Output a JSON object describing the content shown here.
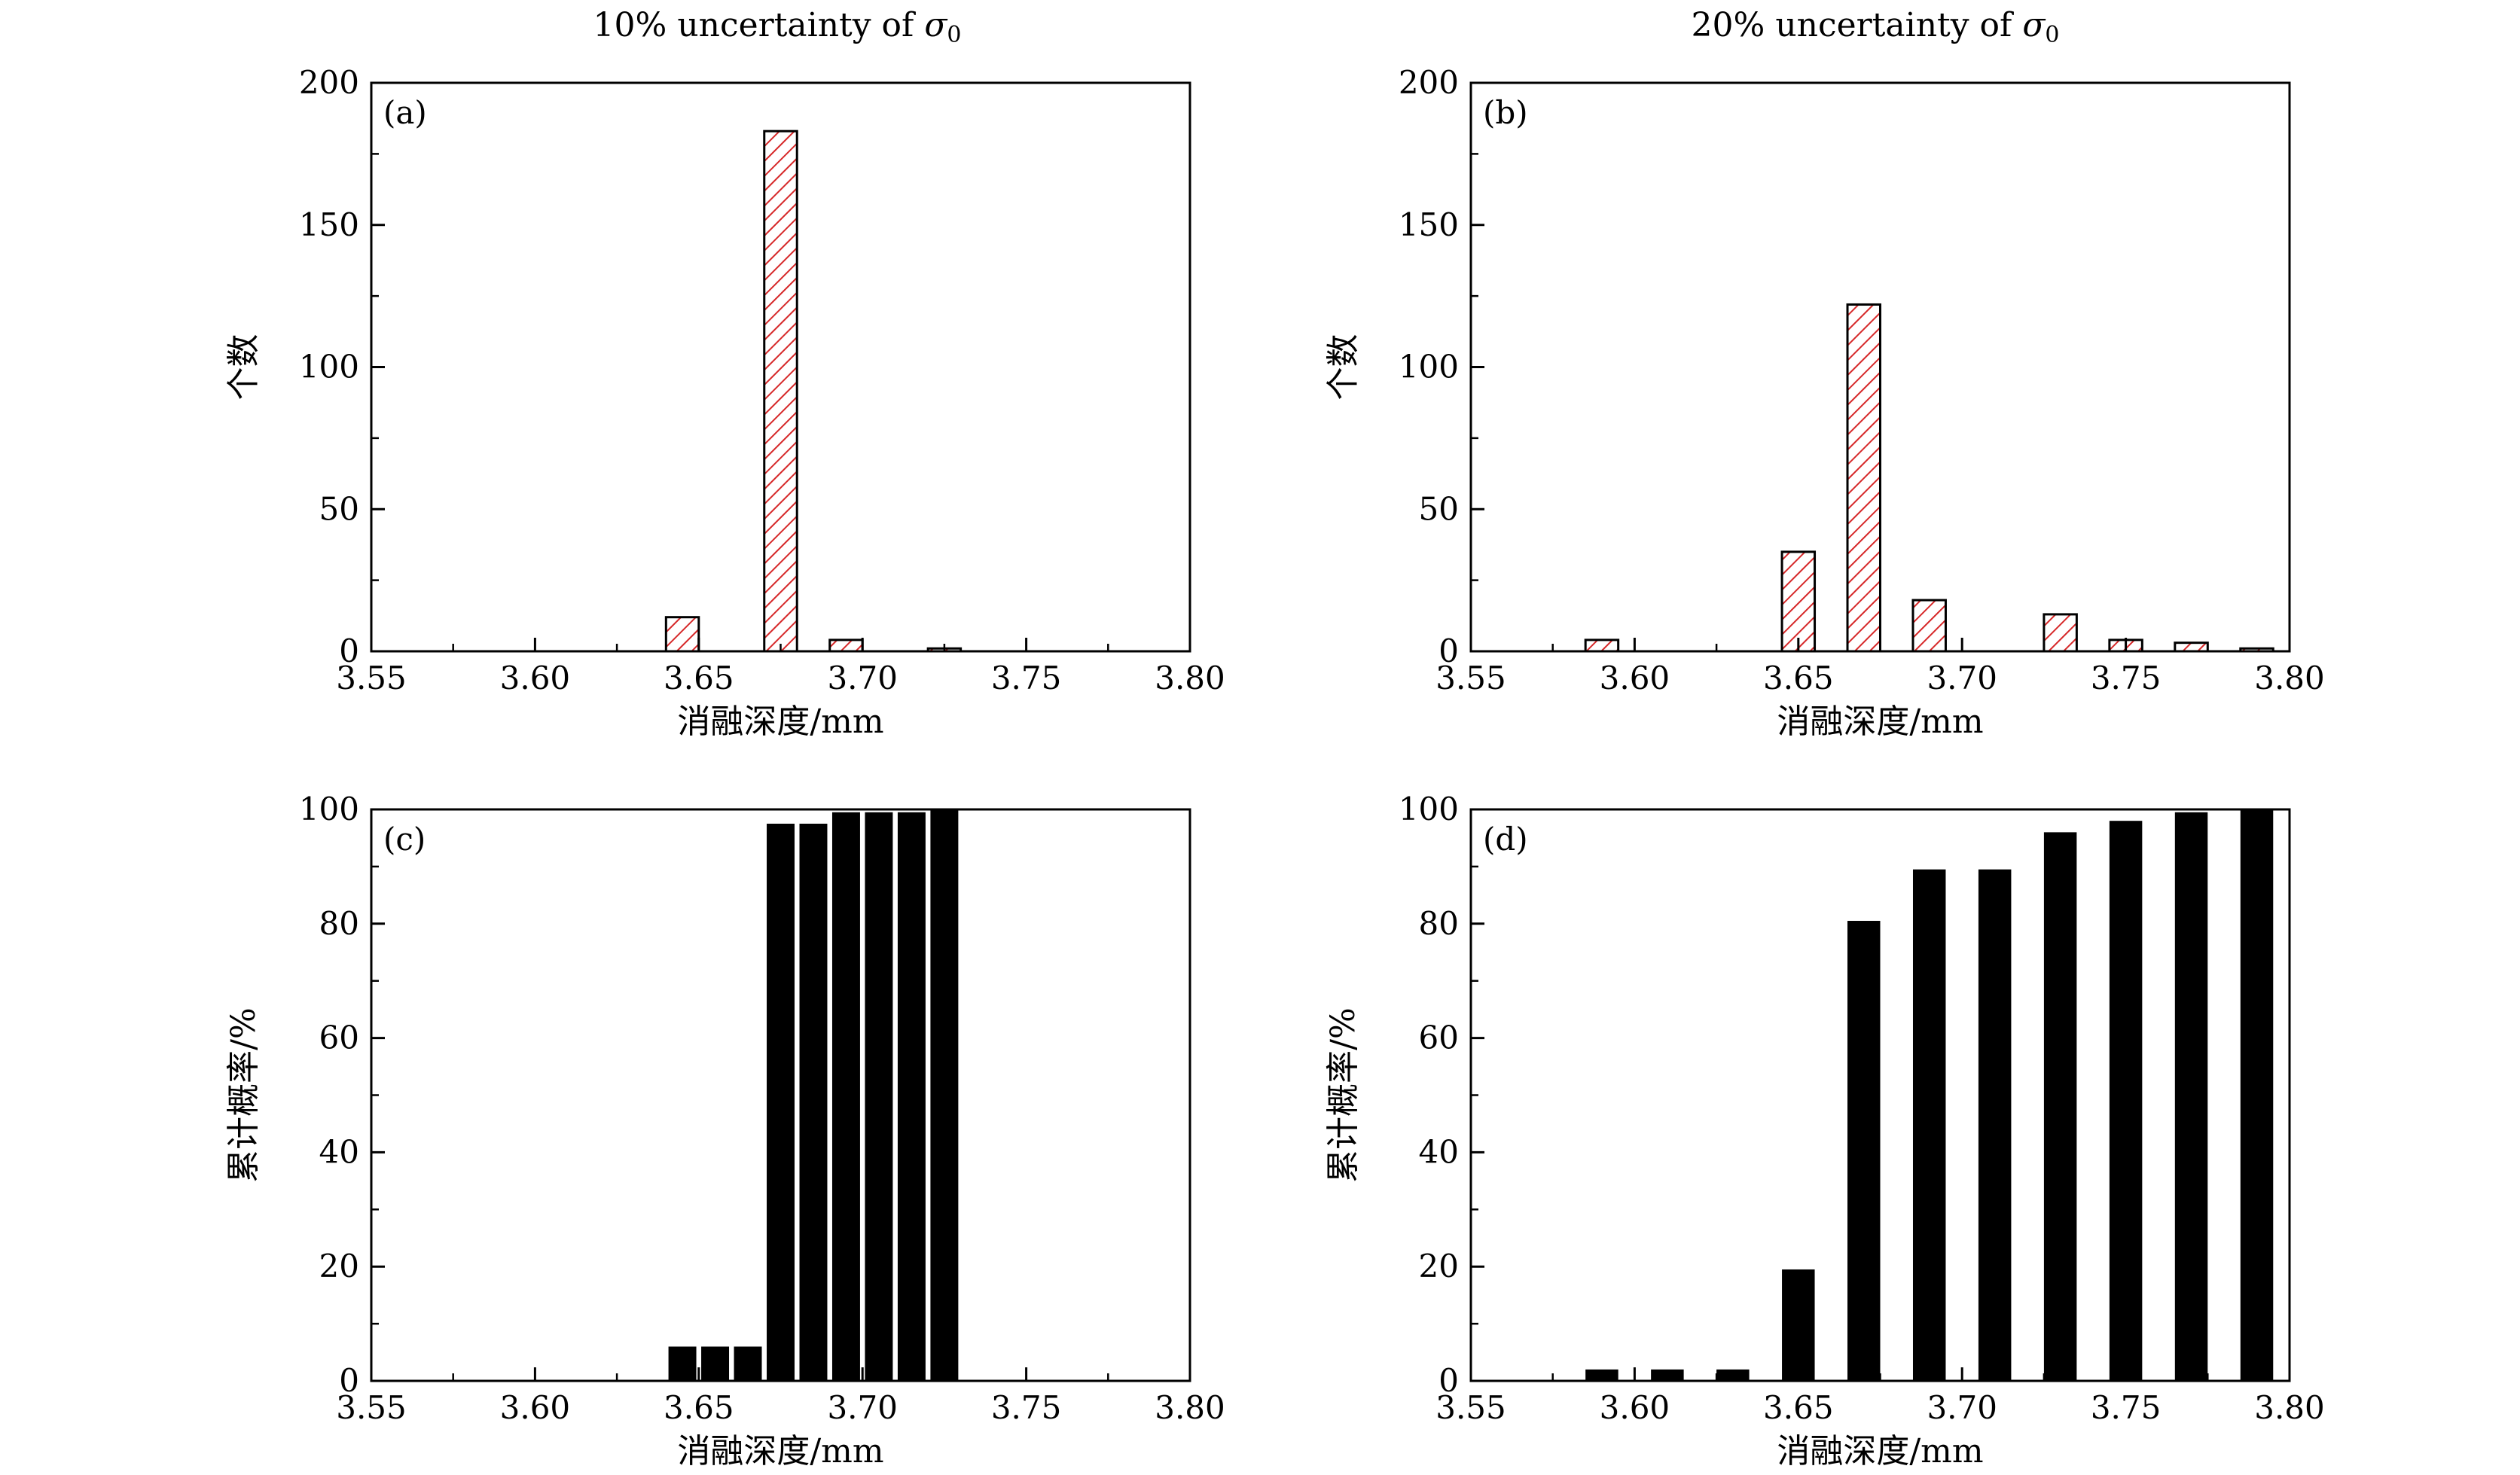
{
  "figure": {
    "column_titles": [
      {
        "prefix": "10% uncertainty of ",
        "symbol": "σ",
        "subscript": "0"
      },
      {
        "prefix": "20% uncertainty of ",
        "symbol": "σ",
        "subscript": "0"
      }
    ]
  },
  "colors": {
    "hatch_stroke": "#d62728",
    "bar_fill_solid": "#000000",
    "axis": "#000000"
  },
  "chart_data": [
    {
      "panel": "(a)",
      "type": "bar",
      "style": "hatched",
      "title": "10% uncertainty of σ0",
      "xlabel": "消融深度/mm",
      "ylabel": "个数",
      "xlim": [
        3.55,
        3.8
      ],
      "ylim": [
        0,
        200
      ],
      "xticks": [
        "3.55",
        "3.60",
        "3.65",
        "3.70",
        "3.75",
        "3.80"
      ],
      "yticks": [
        "0",
        "50",
        "100",
        "150",
        "200"
      ],
      "bar_width": 0.01,
      "x": [
        3.645,
        3.675,
        3.695,
        3.725
      ],
      "values": [
        12,
        183,
        4,
        1
      ]
    },
    {
      "panel": "(b)",
      "type": "bar",
      "style": "hatched",
      "title": "20% uncertainty of σ0",
      "xlabel": "消融深度/mm",
      "ylabel": "个数",
      "xlim": [
        3.55,
        3.8
      ],
      "ylim": [
        0,
        200
      ],
      "xticks": [
        "3.55",
        "3.60",
        "3.65",
        "3.70",
        "3.75",
        "3.80"
      ],
      "yticks": [
        "0",
        "50",
        "100",
        "150",
        "200"
      ],
      "bar_width": 0.01,
      "x": [
        3.59,
        3.65,
        3.67,
        3.69,
        3.73,
        3.75,
        3.77,
        3.79
      ],
      "values": [
        4,
        35,
        122,
        18,
        13,
        4,
        3,
        1
      ]
    },
    {
      "panel": "(c)",
      "type": "bar",
      "style": "solid",
      "xlabel": "消融深度/mm",
      "ylabel": "累计概率/%",
      "xlim": [
        3.55,
        3.8
      ],
      "ylim": [
        0,
        100
      ],
      "xticks": [
        "3.55",
        "3.60",
        "3.65",
        "3.70",
        "3.75",
        "3.80"
      ],
      "yticks": [
        "0",
        "20",
        "40",
        "60",
        "80",
        "100"
      ],
      "bar_width": 0.0085,
      "x": [
        3.645,
        3.655,
        3.665,
        3.675,
        3.685,
        3.695,
        3.705,
        3.715,
        3.725
      ],
      "values": [
        6,
        6,
        6,
        97.5,
        97.5,
        99.5,
        99.5,
        99.5,
        100
      ]
    },
    {
      "panel": "(d)",
      "type": "bar",
      "style": "solid",
      "xlabel": "消融深度/mm",
      "ylabel": "累计概率/%",
      "xlim": [
        3.55,
        3.8
      ],
      "ylim": [
        0,
        100
      ],
      "xticks": [
        "3.55",
        "3.60",
        "3.65",
        "3.70",
        "3.75",
        "3.80"
      ],
      "yticks": [
        "0",
        "20",
        "40",
        "60",
        "80",
        "100"
      ],
      "bar_width": 0.01,
      "x": [
        3.59,
        3.61,
        3.63,
        3.65,
        3.67,
        3.69,
        3.71,
        3.73,
        3.75,
        3.77,
        3.79
      ],
      "values": [
        2,
        2,
        2,
        19.5,
        80.5,
        89.5,
        89.5,
        96,
        98,
        99.5,
        100
      ]
    }
  ]
}
